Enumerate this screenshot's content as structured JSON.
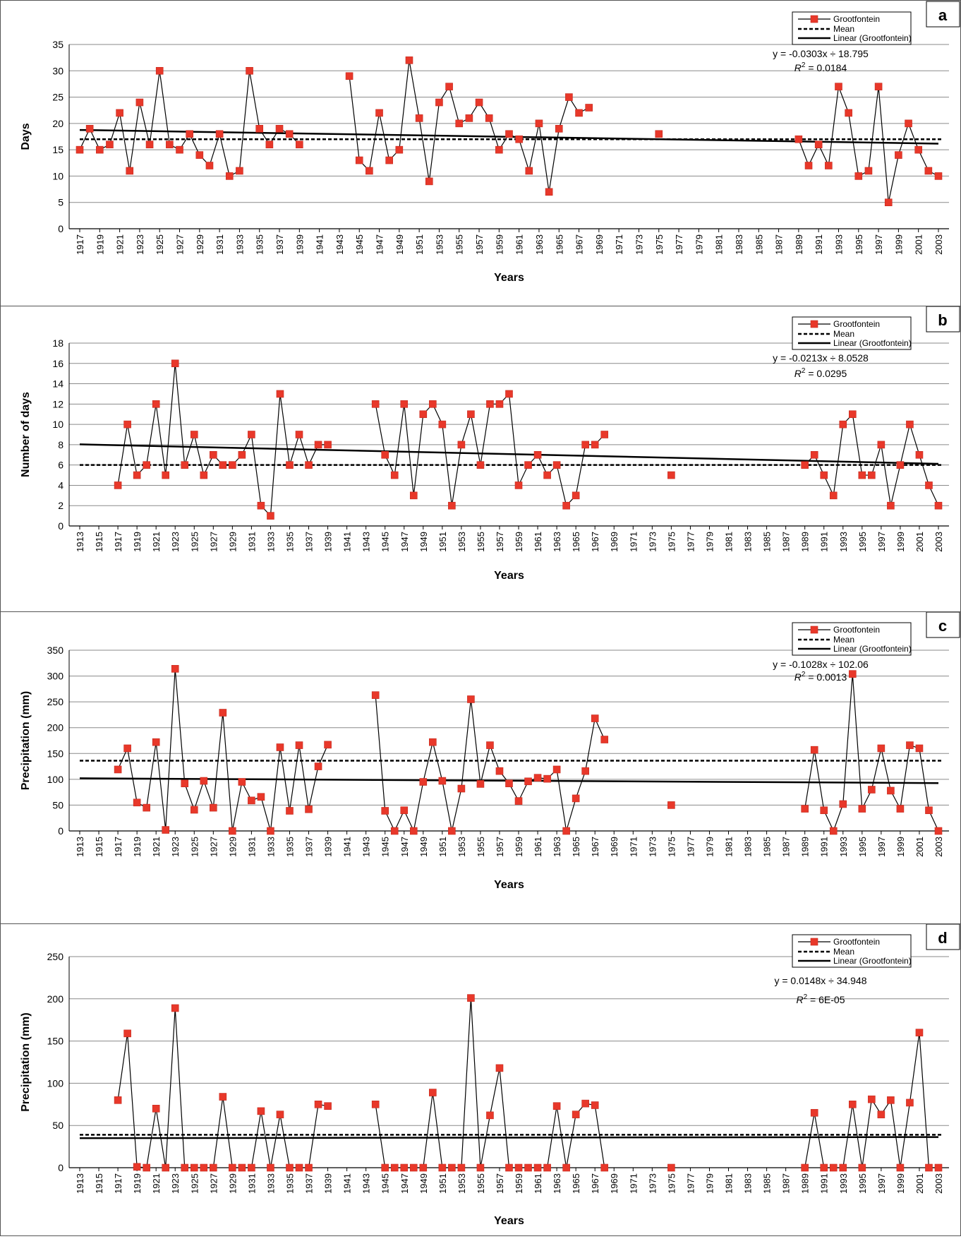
{
  "chart_data": [
    {
      "panel_label": "a",
      "type": "line",
      "xlabel": "Years",
      "ylabel": "Days",
      "ylim": [
        0,
        35
      ],
      "yticks": [
        0,
        5,
        10,
        15,
        20,
        25,
        30,
        35
      ],
      "xlim": [
        1917,
        2003
      ],
      "xticks": [
        1917,
        1919,
        1921,
        1923,
        1925,
        1927,
        1929,
        1931,
        1933,
        1935,
        1937,
        1939,
        1941,
        1943,
        1945,
        1947,
        1949,
        1951,
        1953,
        1955,
        1957,
        1959,
        1961,
        1963,
        1965,
        1967,
        1969,
        1971,
        1973,
        1975,
        1977,
        1979,
        1981,
        1983,
        1985,
        1987,
        1989,
        1991,
        1993,
        1995,
        1997,
        1999,
        2001,
        2003
      ],
      "grid": "horizontal",
      "legend_position": "top-right",
      "legend": [
        "Grootfontein",
        "Mean",
        "Linear (Grootfontein)"
      ],
      "equation": "y = -0.0303x ÷ 18.795",
      "r2_label": "R",
      "r2_value": " = 0.0184",
      "mean": 17,
      "trend": {
        "slope": -0.0303,
        "intercept": 18.795,
        "x0": 1916
      },
      "series": [
        {
          "name": "Grootfontein",
          "x": [
            1917,
            1918,
            1919,
            1920,
            1921,
            1922,
            1923,
            1924,
            1925,
            1926,
            1927,
            1928,
            1929,
            1930,
            1931,
            1932,
            1933,
            1934,
            1935,
            1936,
            1937,
            1938,
            1939,
            1944,
            1945,
            1946,
            1947,
            1948,
            1949,
            1950,
            1951,
            1952,
            1953,
            1954,
            1955,
            1956,
            1957,
            1958,
            1959,
            1960,
            1961,
            1962,
            1963,
            1964,
            1965,
            1966,
            1967,
            1968,
            1975,
            1989,
            1990,
            1991,
            1992,
            1993,
            1994,
            1995,
            1996,
            1997,
            1998,
            1999,
            2000,
            2001,
            2002,
            2003
          ],
          "y": [
            15,
            19,
            15,
            16,
            22,
            11,
            24,
            16,
            30,
            16,
            15,
            18,
            14,
            12,
            18,
            10,
            11,
            30,
            19,
            16,
            19,
            18,
            16,
            29,
            13,
            11,
            22,
            13,
            15,
            32,
            21,
            9,
            24,
            27,
            20,
            21,
            24,
            21,
            15,
            18,
            17,
            11,
            20,
            7,
            19,
            25,
            22,
            23,
            18,
            17,
            12,
            16,
            12,
            27,
            22,
            10,
            11,
            27,
            5,
            14,
            20,
            15,
            11,
            10
          ],
          "segments": [
            [
              1917,
              1939
            ],
            [
              1944,
              1968
            ],
            [
              1989,
              2003
            ]
          ]
        }
      ]
    },
    {
      "panel_label": "b",
      "type": "line",
      "xlabel": "Years",
      "ylabel": "Number of days",
      "ylim": [
        0,
        18
      ],
      "yticks": [
        0,
        2,
        4,
        6,
        8,
        10,
        12,
        14,
        16,
        18
      ],
      "xlim": [
        1913,
        2003
      ],
      "xticks": [
        1913,
        1915,
        1917,
        1919,
        1921,
        1923,
        1925,
        1927,
        1929,
        1931,
        1933,
        1935,
        1937,
        1939,
        1941,
        1943,
        1945,
        1947,
        1949,
        1951,
        1953,
        1955,
        1957,
        1959,
        1961,
        1963,
        1965,
        1967,
        1969,
        1971,
        1973,
        1975,
        1977,
        1979,
        1981,
        1983,
        1985,
        1987,
        1989,
        1991,
        1993,
        1995,
        1997,
        1999,
        2001,
        2003
      ],
      "grid": "horizontal",
      "legend_position": "top-right",
      "legend": [
        "Grootfontein",
        "Mean",
        "Linear (Grootfontein)"
      ],
      "equation": "y = -0.0213x ÷ 8.0528",
      "r2_label": "R",
      "r2_value": " = 0.0295",
      "mean": 6,
      "trend": {
        "slope": -0.0213,
        "intercept": 8.0528,
        "x0": 1912
      },
      "series": [
        {
          "name": "Grootfontein",
          "x": [
            1917,
            1918,
            1919,
            1920,
            1921,
            1922,
            1923,
            1924,
            1925,
            1926,
            1927,
            1928,
            1929,
            1930,
            1931,
            1932,
            1933,
            1934,
            1935,
            1936,
            1937,
            1938,
            1939,
            1944,
            1945,
            1946,
            1947,
            1948,
            1949,
            1950,
            1951,
            1952,
            1953,
            1954,
            1955,
            1956,
            1957,
            1958,
            1959,
            1960,
            1961,
            1962,
            1963,
            1964,
            1965,
            1966,
            1967,
            1968,
            1975,
            1989,
            1990,
            1991,
            1992,
            1993,
            1994,
            1995,
            1996,
            1997,
            1998,
            1999,
            2000,
            2001,
            2002,
            2003
          ],
          "y": [
            4,
            10,
            5,
            6,
            12,
            5,
            16,
            6,
            9,
            5,
            7,
            6,
            6,
            7,
            9,
            2,
            1,
            13,
            6,
            9,
            6,
            8,
            8,
            12,
            7,
            5,
            12,
            3,
            11,
            12,
            10,
            2,
            8,
            11,
            6,
            12,
            12,
            13,
            4,
            6,
            7,
            5,
            6,
            2,
            3,
            8,
            8,
            9,
            5,
            6,
            7,
            5,
            3,
            10,
            11,
            5,
            5,
            8,
            2,
            6,
            10,
            7,
            4,
            2
          ],
          "segments": [
            [
              1917,
              1939
            ],
            [
              1944,
              1968
            ],
            [
              1989,
              2003
            ]
          ]
        }
      ]
    },
    {
      "panel_label": "c",
      "type": "line",
      "xlabel": "Years",
      "ylabel": "Precipitation (mm)",
      "ylim": [
        0,
        350
      ],
      "yticks": [
        0,
        50,
        100,
        150,
        200,
        250,
        300,
        350
      ],
      "xlim": [
        1913,
        2003
      ],
      "xticks": [
        1913,
        1915,
        1917,
        1919,
        1921,
        1923,
        1925,
        1927,
        1929,
        1931,
        1933,
        1935,
        1937,
        1939,
        1941,
        1943,
        1945,
        1947,
        1949,
        1951,
        1953,
        1955,
        1957,
        1959,
        1961,
        1963,
        1965,
        1967,
        1969,
        1971,
        1973,
        1975,
        1977,
        1979,
        1981,
        1983,
        1985,
        1987,
        1989,
        1991,
        1993,
        1995,
        1997,
        1999,
        2001,
        2003
      ],
      "grid": "horizontal",
      "legend_position": "top-right",
      "legend": [
        "Grootfontein",
        "Mean",
        "Linear (Grootfontein)"
      ],
      "equation": "y = -0.1028x ÷ 102.06",
      "r2_label": "R",
      "r2_value": " = 0.0013",
      "mean": 136,
      "trend": {
        "slope": -0.1028,
        "intercept": 102.06,
        "x0": 1912
      },
      "series": [
        {
          "name": "Grootfontein",
          "x": [
            1917,
            1918,
            1919,
            1920,
            1921,
            1922,
            1923,
            1924,
            1925,
            1926,
            1927,
            1928,
            1929,
            1930,
            1931,
            1932,
            1933,
            1934,
            1935,
            1936,
            1937,
            1938,
            1939,
            1944,
            1945,
            1946,
            1947,
            1948,
            1949,
            1950,
            1951,
            1952,
            1953,
            1954,
            1955,
            1956,
            1957,
            1958,
            1959,
            1960,
            1961,
            1962,
            1963,
            1964,
            1965,
            1966,
            1967,
            1968,
            1975,
            1989,
            1990,
            1991,
            1992,
            1993,
            1994,
            1995,
            1996,
            1997,
            1998,
            1999,
            2000,
            2001,
            2002,
            2003
          ],
          "y": [
            119,
            160,
            55,
            45,
            172,
            2,
            314,
            92,
            41,
            97,
            45,
            229,
            0,
            95,
            59,
            66,
            0,
            162,
            39,
            166,
            42,
            125,
            167,
            263,
            39,
            0,
            40,
            0,
            95,
            172,
            97,
            0,
            82,
            255,
            91,
            166,
            116,
            92,
            58,
            96,
            103,
            101,
            119,
            0,
            63,
            116,
            218,
            177,
            50,
            43,
            157,
            40,
            0,
            52,
            304,
            43,
            80,
            160,
            78,
            43,
            166,
            160,
            40,
            0
          ],
          "segments": [
            [
              1917,
              1939
            ],
            [
              1944,
              1968
            ],
            [
              1989,
              2003
            ]
          ]
        }
      ]
    },
    {
      "panel_label": "d",
      "type": "line",
      "xlabel": "Years",
      "ylabel": "Precipitation (mm)",
      "ylim": [
        0,
        250
      ],
      "yticks": [
        0,
        50,
        100,
        150,
        200,
        250
      ],
      "xlim": [
        1913,
        2003
      ],
      "xticks": [
        1913,
        1915,
        1917,
        1919,
        1921,
        1923,
        1925,
        1927,
        1929,
        1931,
        1933,
        1935,
        1937,
        1939,
        1941,
        1943,
        1945,
        1947,
        1949,
        1951,
        1953,
        1955,
        1957,
        1959,
        1961,
        1963,
        1965,
        1967,
        1969,
        1971,
        1973,
        1975,
        1977,
        1979,
        1981,
        1983,
        1985,
        1987,
        1989,
        1991,
        1993,
        1995,
        1997,
        1999,
        2001,
        2003
      ],
      "grid": "horizontal",
      "legend_position": "top-right",
      "legend": [
        "Grootfontein",
        "Mean",
        "Linear (Grootfontein)"
      ],
      "equation": "y = 0.0148x ÷ 34.948",
      "r2_label": "R",
      "r2_value": " = 6E-05",
      "mean": 39,
      "trend": {
        "slope": 0.0148,
        "intercept": 34.948,
        "x0": 1912
      },
      "series": [
        {
          "name": "Grootfontein",
          "x": [
            1917,
            1918,
            1919,
            1920,
            1921,
            1922,
            1923,
            1924,
            1925,
            1926,
            1927,
            1928,
            1929,
            1930,
            1931,
            1932,
            1933,
            1934,
            1935,
            1936,
            1937,
            1938,
            1939,
            1944,
            1945,
            1946,
            1947,
            1948,
            1949,
            1950,
            1951,
            1952,
            1953,
            1954,
            1955,
            1956,
            1957,
            1958,
            1959,
            1960,
            1961,
            1962,
            1963,
            1964,
            1965,
            1966,
            1967,
            1968,
            1975,
            1989,
            1990,
            1991,
            1992,
            1993,
            1994,
            1995,
            1996,
            1997,
            1998,
            1999,
            2000,
            2001,
            2002,
            2003
          ],
          "y": [
            80,
            159,
            1,
            0,
            70,
            0,
            189,
            0,
            0,
            0,
            0,
            84,
            0,
            0,
            0,
            67,
            0,
            63,
            0,
            0,
            0,
            75,
            73,
            75,
            0,
            0,
            0,
            0,
            0,
            89,
            0,
            0,
            0,
            201,
            0,
            62,
            118,
            0,
            0,
            0,
            0,
            0,
            73,
            0,
            63,
            76,
            74,
            0,
            0,
            0,
            65,
            0,
            0,
            0,
            75,
            0,
            81,
            63,
            80,
            0,
            77,
            160,
            0,
            0
          ],
          "segments": [
            [
              1917,
              1939
            ],
            [
              1944,
              1968
            ],
            [
              1989,
              2003
            ]
          ]
        }
      ]
    }
  ]
}
